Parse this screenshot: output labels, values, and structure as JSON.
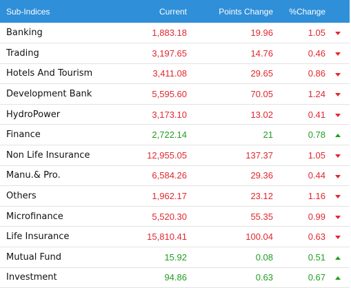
{
  "header": {
    "name": "Sub-Indices",
    "current": "Current",
    "points_change": "Points Change",
    "pct_change": "%Change"
  },
  "colors": {
    "header_bg": "#2f8fd8",
    "negative": "#e0262d",
    "positive": "#1f9e1f"
  },
  "rows": [
    {
      "name": "Banking",
      "current": "1,883.18",
      "points": "19.96",
      "pct": "1.05",
      "dir": "down"
    },
    {
      "name": "Trading",
      "current": "3,197.65",
      "points": "14.76",
      "pct": "0.46",
      "dir": "down"
    },
    {
      "name": "Hotels And Tourism",
      "current": "3,411.08",
      "points": "29.65",
      "pct": "0.86",
      "dir": "down"
    },
    {
      "name": "Development Bank",
      "current": "5,595.60",
      "points": "70.05",
      "pct": "1.24",
      "dir": "down"
    },
    {
      "name": "HydroPower",
      "current": "3,173.10",
      "points": "13.02",
      "pct": "0.41",
      "dir": "down"
    },
    {
      "name": "Finance",
      "current": "2,722.14",
      "points": "21",
      "pct": "0.78",
      "dir": "up"
    },
    {
      "name": "Non Life Insurance",
      "current": "12,955.05",
      "points": "137.37",
      "pct": "1.05",
      "dir": "down"
    },
    {
      "name": "Manu.& Pro.",
      "current": "6,584.26",
      "points": "29.36",
      "pct": "0.44",
      "dir": "down"
    },
    {
      "name": "Others",
      "current": "1,962.17",
      "points": "23.12",
      "pct": "1.16",
      "dir": "down"
    },
    {
      "name": "Microfinance",
      "current": "5,520.30",
      "points": "55.35",
      "pct": "0.99",
      "dir": "down"
    },
    {
      "name": "Life Insurance",
      "current": "15,810.41",
      "points": "100.04",
      "pct": "0.63",
      "dir": "down"
    },
    {
      "name": "Mutual Fund",
      "current": "15.92",
      "points": "0.08",
      "pct": "0.51",
      "dir": "up"
    },
    {
      "name": "Investment",
      "current": "94.86",
      "points": "0.63",
      "pct": "0.67",
      "dir": "up"
    }
  ]
}
